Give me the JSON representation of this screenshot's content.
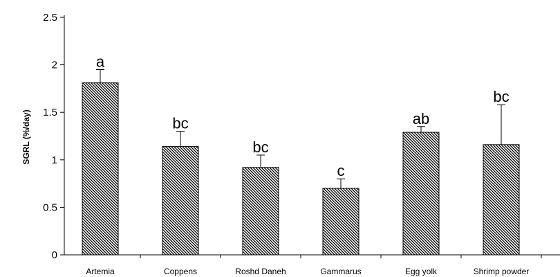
{
  "chart_data": {
    "type": "bar",
    "title": "",
    "xlabel": "",
    "ylabel": "SGRL (%/day)",
    "ylim": [
      0,
      2.5
    ],
    "yticks": [
      "0",
      "0.5",
      "1",
      "1.5",
      "2",
      "2.5"
    ],
    "ytick_values": [
      0,
      0.5,
      1,
      1.5,
      2,
      2.5
    ],
    "grid": false,
    "legend": "none",
    "bar_pattern": "diagonal-hatch",
    "bar_color": "#000000",
    "categories": [
      "Artemia",
      "Coppens",
      "Roshd Daneh",
      "Gammarus",
      "Egg yolk",
      "Shrimp powder"
    ],
    "values": [
      1.81,
      1.14,
      0.92,
      0.7,
      1.29,
      1.16
    ],
    "error_upper": [
      1.95,
      1.3,
      1.05,
      0.8,
      1.35,
      1.58
    ],
    "significance_labels": [
      "a",
      "bc",
      "bc",
      "c",
      "ab",
      "bc"
    ]
  }
}
